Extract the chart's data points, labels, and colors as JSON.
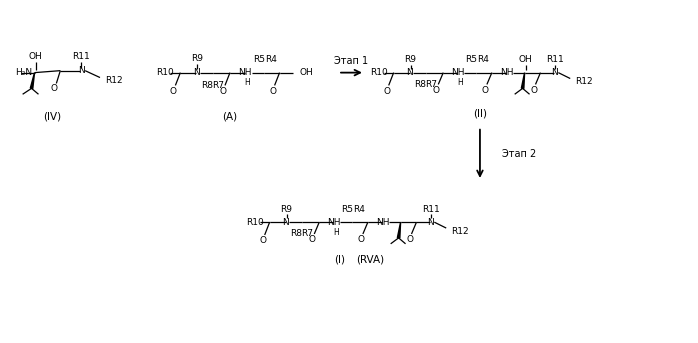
{
  "background_color": "#ffffff",
  "line_color": "#000000",
  "text_color": "#000000",
  "fig_width": 6.98,
  "fig_height": 3.43,
  "dpi": 100,
  "font_size_atoms": 6.5,
  "font_size_label": 7.0,
  "font_size_compound": 7.5,
  "step1_label": "Этап 1",
  "step2_label": "Этап 2",
  "compound_IV": "(IV)",
  "compound_A": "(A)",
  "compound_II": "(II)",
  "compound_I": "(I)",
  "compound_RVA": "(RVA)"
}
